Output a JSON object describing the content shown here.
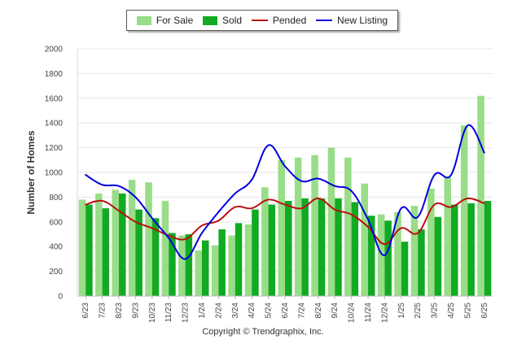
{
  "chart_data": {
    "type": "bar",
    "title": "",
    "ylabel": "Number of Homes",
    "xlabel": "",
    "ylim": [
      0,
      2000
    ],
    "yticks": [
      0,
      200,
      400,
      600,
      800,
      1000,
      1200,
      1400,
      1600,
      1800,
      2000
    ],
    "grid": true,
    "legend_position": "top-center",
    "categories": [
      "6/23",
      "7/23",
      "8/23",
      "9/23",
      "10/23",
      "11/23",
      "12/23",
      "1/24",
      "2/24",
      "3/24",
      "4/24",
      "5/24",
      "6/24",
      "7/24",
      "8/24",
      "9/24",
      "10/24",
      "11/24",
      "12/24",
      "1/25",
      "2/25",
      "3/25",
      "4/25",
      "5/25",
      "6/25"
    ],
    "series": [
      {
        "name": "For Sale",
        "kind": "bar",
        "color": "#99dd88",
        "values": [
          780,
          830,
          860,
          940,
          920,
          770,
          490,
          370,
          410,
          490,
          580,
          880,
          1100,
          1120,
          1140,
          1200,
          1120,
          910,
          660,
          680,
          730,
          870,
          960,
          1380,
          1620
        ]
      },
      {
        "name": "Sold",
        "kind": "bar",
        "color": "#11aa22",
        "values": [
          740,
          710,
          830,
          700,
          630,
          510,
          500,
          450,
          540,
          590,
          700,
          740,
          770,
          790,
          790,
          790,
          760,
          650,
          610,
          440,
          540,
          640,
          740,
          750,
          770
        ]
      },
      {
        "name": "Pended",
        "kind": "line",
        "color": "#bb1111",
        "values": [
          740,
          770,
          690,
          600,
          550,
          490,
          460,
          570,
          610,
          720,
          710,
          780,
          740,
          710,
          790,
          700,
          660,
          560,
          420,
          550,
          510,
          740,
          720,
          790,
          750
        ]
      },
      {
        "name": "New Listing",
        "kind": "line",
        "color": "#0000dd",
        "values": [
          980,
          900,
          890,
          800,
          630,
          470,
          300,
          510,
          680,
          830,
          940,
          1220,
          1050,
          930,
          950,
          890,
          850,
          620,
          330,
          710,
          640,
          980,
          980,
          1380,
          1160
        ]
      }
    ],
    "copyright": "Copyright © Trendgraphix, Inc."
  }
}
